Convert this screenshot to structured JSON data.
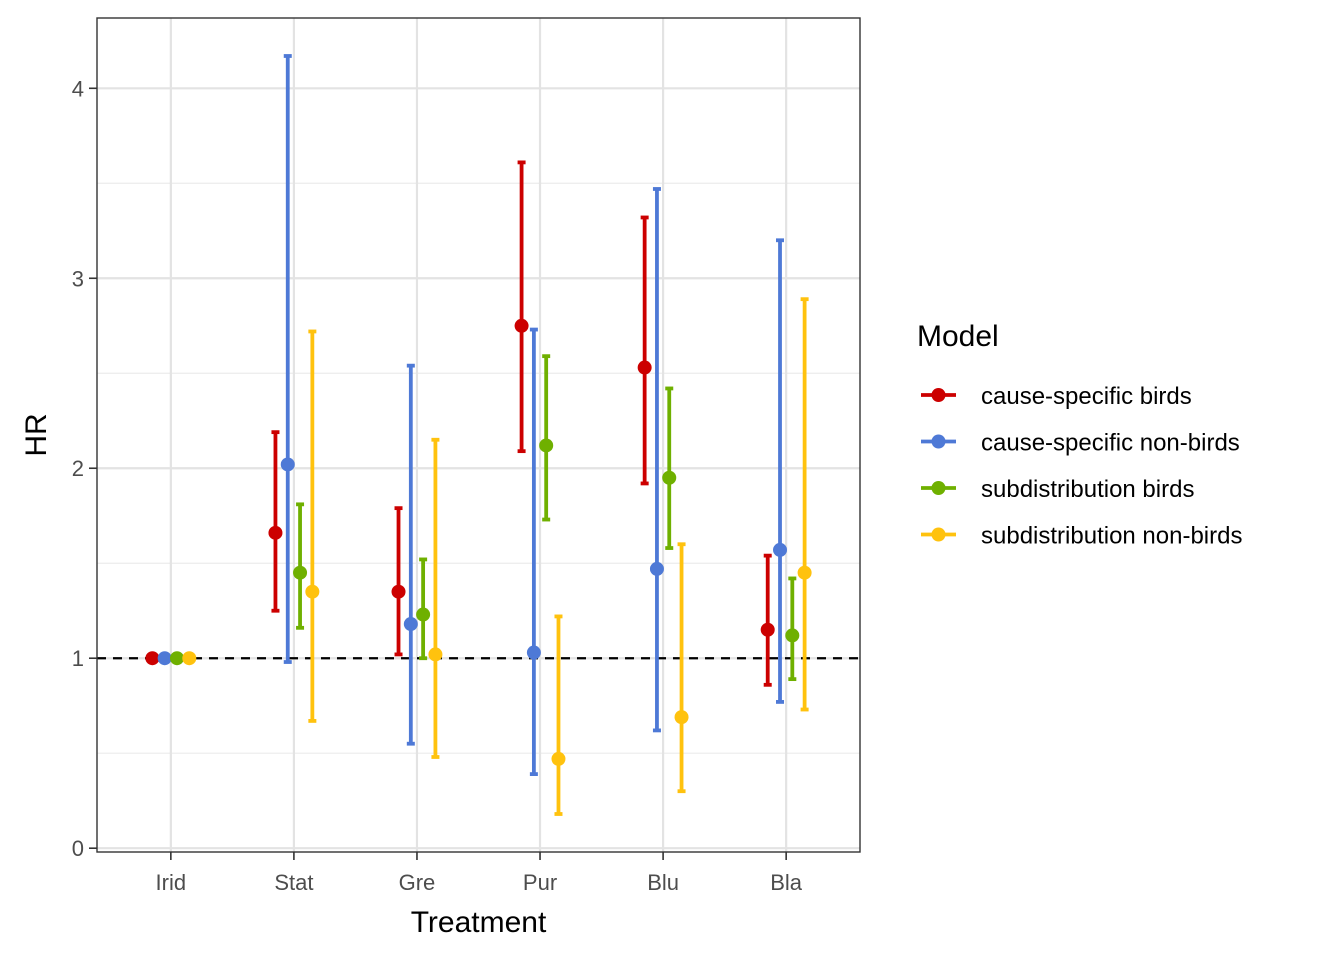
{
  "chart_data": {
    "type": "errorbar",
    "xlabel": "Treatment",
    "ylabel": "HR",
    "categories": [
      "Irid",
      "Stat",
      "Gre",
      "Pur",
      "Blu",
      "Bla"
    ],
    "ylim": [
      -0.02,
      4.37
    ],
    "yticks": [
      0,
      1,
      2,
      3,
      4
    ],
    "yminor": [
      0.5,
      1.5,
      2.5,
      3.5
    ],
    "grid": true,
    "reference_line": 1,
    "legend_title": "Model",
    "legend_position": "right",
    "series": [
      {
        "name": "cause-specific birds",
        "color": "#cc0000",
        "points": [
          {
            "est": 1.0,
            "lo": null,
            "hi": null
          },
          {
            "est": 1.66,
            "lo": 1.25,
            "hi": 2.19
          },
          {
            "est": 1.35,
            "lo": 1.02,
            "hi": 1.79
          },
          {
            "est": 2.75,
            "lo": 2.09,
            "hi": 3.61
          },
          {
            "est": 2.53,
            "lo": 1.92,
            "hi": 3.32
          },
          {
            "est": 1.15,
            "lo": 0.86,
            "hi": 1.54
          }
        ]
      },
      {
        "name": "cause-specific non-birds",
        "color": "#4e79d6",
        "points": [
          {
            "est": 1.0,
            "lo": null,
            "hi": null
          },
          {
            "est": 2.02,
            "lo": 0.98,
            "hi": 4.17
          },
          {
            "est": 1.18,
            "lo": 0.55,
            "hi": 2.54
          },
          {
            "est": 1.03,
            "lo": 0.39,
            "hi": 2.73
          },
          {
            "est": 1.47,
            "lo": 0.62,
            "hi": 3.47
          },
          {
            "est": 1.57,
            "lo": 0.77,
            "hi": 3.2
          }
        ]
      },
      {
        "name": "subdistribution birds",
        "color": "#6fb000",
        "points": [
          {
            "est": 1.0,
            "lo": null,
            "hi": null
          },
          {
            "est": 1.45,
            "lo": 1.16,
            "hi": 1.81
          },
          {
            "est": 1.23,
            "lo": 1.0,
            "hi": 1.52
          },
          {
            "est": 2.12,
            "lo": 1.73,
            "hi": 2.59
          },
          {
            "est": 1.95,
            "lo": 1.58,
            "hi": 2.42
          },
          {
            "est": 1.12,
            "lo": 0.89,
            "hi": 1.42
          }
        ]
      },
      {
        "name": "subdistribution non-birds",
        "color": "#ffc20e",
        "points": [
          {
            "est": 1.0,
            "lo": null,
            "hi": null
          },
          {
            "est": 1.35,
            "lo": 0.67,
            "hi": 2.72
          },
          {
            "est": 1.02,
            "lo": 0.48,
            "hi": 2.15
          },
          {
            "est": 0.47,
            "lo": 0.18,
            "hi": 1.22
          },
          {
            "est": 0.69,
            "lo": 0.3,
            "hi": 1.6
          },
          {
            "est": 1.45,
            "lo": 0.73,
            "hi": 2.89
          }
        ]
      }
    ]
  }
}
